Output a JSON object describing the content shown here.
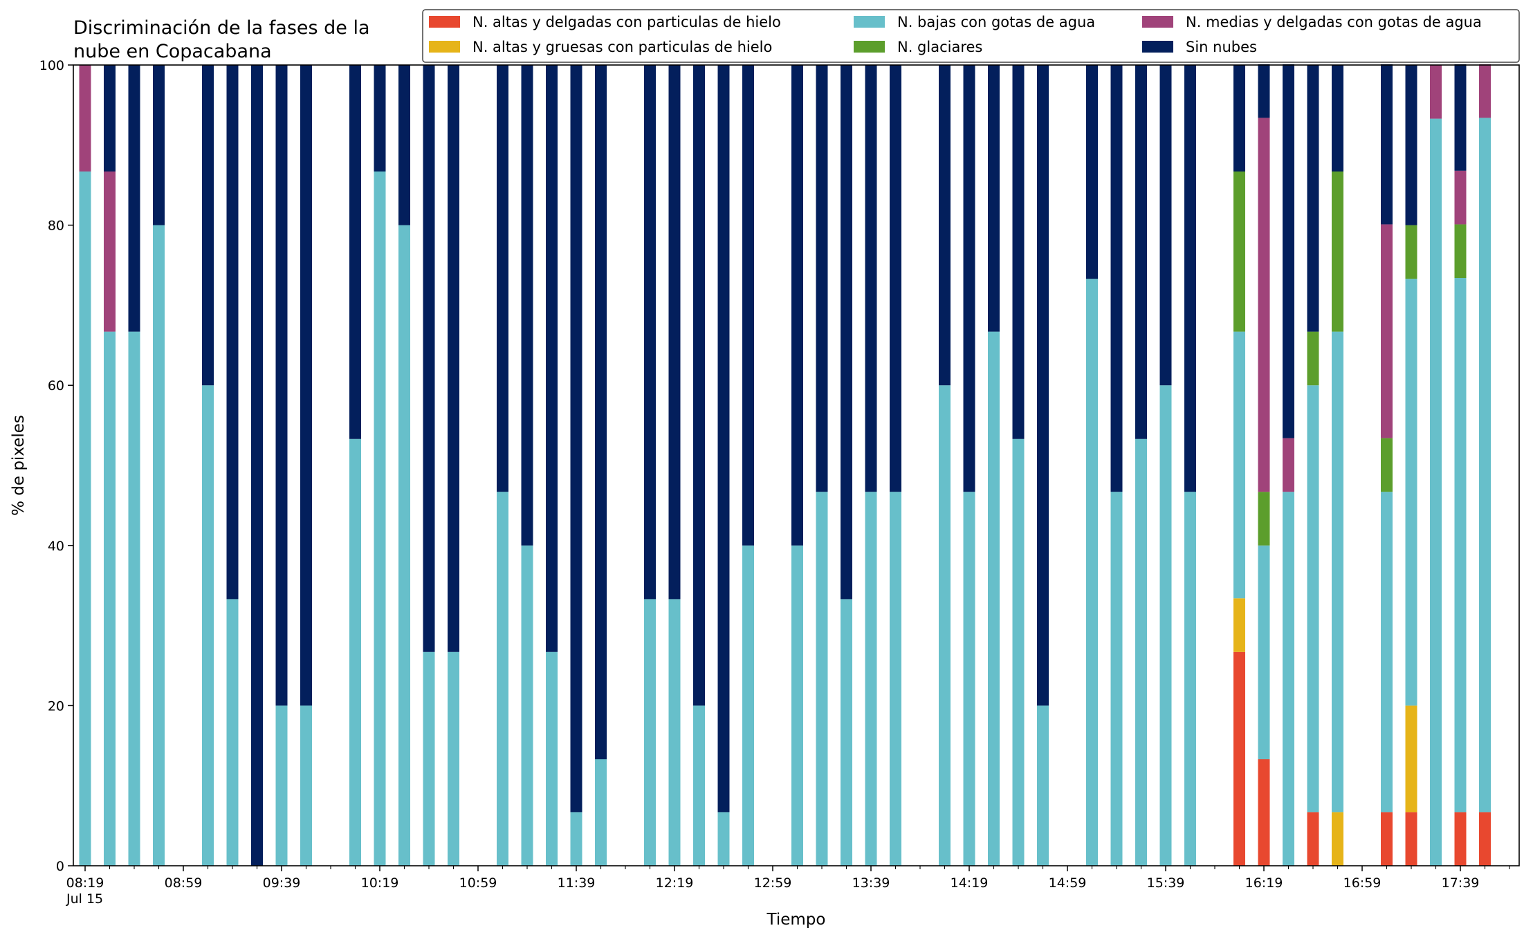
{
  "chart_data": {
    "type": "bar",
    "stacked": true,
    "title_lines": [
      "Discriminación de la fases de la",
      "nube en Copacabana"
    ],
    "xlabel": "Tiempo",
    "ylabel": "% de pixeles",
    "ylim": [
      0,
      100
    ],
    "yticks": [
      "0",
      "20",
      "40",
      "60",
      "80",
      "100"
    ],
    "xticks": [
      "08:19",
      "08:59",
      "09:39",
      "10:19",
      "10:59",
      "11:39",
      "12:19",
      "12:59",
      "13:39",
      "14:19",
      "14:59",
      "15:39",
      "16:19",
      "16:59",
      "17:39"
    ],
    "x_date_label": "Jul 15",
    "grid": false,
    "legend_position": "top-right",
    "x": [
      "08:19",
      "08:29",
      "08:39",
      "08:49",
      "08:59",
      "09:09",
      "09:19",
      "09:29",
      "09:39",
      "09:49",
      "09:59",
      "10:09",
      "10:19",
      "10:29",
      "10:39",
      "10:49",
      "10:59",
      "11:09",
      "11:19",
      "11:29",
      "11:39",
      "11:49",
      "11:59",
      "12:09",
      "12:19",
      "12:29",
      "12:39",
      "12:49",
      "12:59",
      "13:09",
      "13:19",
      "13:29",
      "13:39",
      "13:49",
      "13:59",
      "14:09",
      "14:19",
      "14:29",
      "14:39",
      "14:49",
      "14:59",
      "15:09",
      "15:19",
      "15:29",
      "15:39",
      "15:49",
      "15:59",
      "16:09",
      "16:19",
      "16:29",
      "16:39",
      "16:49",
      "16:59",
      "17:09",
      "17:19",
      "17:29",
      "17:39",
      "17:49"
    ],
    "series": [
      {
        "name": "N. altas y delgadas con particulas de hielo",
        "color": "#e8482f",
        "values": [
          0,
          0,
          0,
          0,
          0,
          0,
          0,
          0,
          0,
          0,
          0,
          0,
          0,
          0,
          0,
          0,
          0,
          0,
          0,
          0,
          0,
          0,
          0,
          0,
          0,
          0,
          0,
          0,
          0,
          0,
          0,
          0,
          0,
          0,
          0,
          0,
          0,
          0,
          0,
          0,
          0,
          0,
          0,
          0,
          0,
          0,
          0,
          26.7,
          13.3,
          0,
          6.7,
          0,
          0,
          6.7,
          6.7,
          0,
          6.7,
          6.7
        ]
      },
      {
        "name": "N. altas y gruesas con particulas de hielo",
        "color": "#e6b419",
        "values": [
          0,
          0,
          0,
          0,
          0,
          0,
          0,
          0,
          0,
          0,
          0,
          0,
          0,
          0,
          0,
          0,
          0,
          0,
          0,
          0,
          0,
          0,
          0,
          0,
          0,
          0,
          0,
          0,
          0,
          0,
          0,
          0,
          0,
          0,
          0,
          0,
          0,
          0,
          0,
          0,
          0,
          0,
          0,
          0,
          0,
          0,
          0,
          6.7,
          0,
          0,
          0,
          6.7,
          0,
          0,
          13.3,
          0,
          0,
          0
        ]
      },
      {
        "name": "N. bajas con gotas de agua",
        "color": "#67bfca",
        "values": [
          86.7,
          66.7,
          66.7,
          80,
          0,
          60,
          33.3,
          0,
          20,
          20,
          0,
          53.3,
          86.7,
          80,
          26.7,
          26.7,
          0,
          46.7,
          40,
          26.7,
          6.7,
          13.3,
          0,
          33.3,
          33.3,
          20,
          6.7,
          40,
          0,
          40,
          46.7,
          33.3,
          46.7,
          46.7,
          0,
          60,
          46.7,
          66.7,
          53.3,
          20,
          0,
          73.3,
          46.7,
          53.3,
          60,
          46.7,
          0,
          33.3,
          26.7,
          46.7,
          53.3,
          60,
          0,
          40,
          53.3,
          93.3,
          66.7,
          86.7
        ]
      },
      {
        "name": "N. glaciares",
        "color": "#5c9e2c",
        "values": [
          0,
          0,
          0,
          0,
          0,
          0,
          0,
          0,
          0,
          0,
          0,
          0,
          0,
          0,
          0,
          0,
          0,
          0,
          0,
          0,
          0,
          0,
          0,
          0,
          0,
          0,
          0,
          0,
          0,
          0,
          0,
          0,
          0,
          0,
          0,
          0,
          0,
          0,
          0,
          0,
          0,
          0,
          0,
          0,
          0,
          0,
          0,
          20,
          6.7,
          0,
          6.7,
          20,
          0,
          6.7,
          6.7,
          0,
          6.7,
          0
        ]
      },
      {
        "name": "N. medias y delgadas con gotas de agua",
        "color": "#a0437a",
        "values": [
          13.3,
          20,
          0,
          0,
          0,
          0,
          0,
          0,
          0,
          0,
          0,
          0,
          0,
          0,
          0,
          0,
          0,
          0,
          0,
          0,
          0,
          0,
          0,
          0,
          0,
          0,
          0,
          0,
          0,
          0,
          0,
          0,
          0,
          0,
          0,
          0,
          0,
          0,
          0,
          0,
          0,
          0,
          0,
          0,
          0,
          0,
          0,
          0,
          46.7,
          6.7,
          0,
          0,
          0,
          26.7,
          0,
          6.7,
          6.7,
          6.7
        ]
      },
      {
        "name": "Sin nubes",
        "color": "#031f5c",
        "values": [
          0,
          13.3,
          33.3,
          20,
          0,
          40,
          66.7,
          100,
          80,
          80,
          0,
          46.7,
          13.3,
          20,
          73.3,
          73.3,
          0,
          53.3,
          60,
          73.3,
          93.3,
          86.7,
          0,
          66.7,
          66.7,
          80,
          93.3,
          60,
          0,
          60,
          53.3,
          66.7,
          53.3,
          53.3,
          0,
          40,
          53.3,
          33.3,
          46.7,
          80,
          0,
          26.7,
          53.3,
          46.7,
          40,
          53.3,
          0,
          13.3,
          6.7,
          46.7,
          33.3,
          13.3,
          0,
          20,
          20,
          0,
          13.3,
          0
        ]
      }
    ]
  }
}
